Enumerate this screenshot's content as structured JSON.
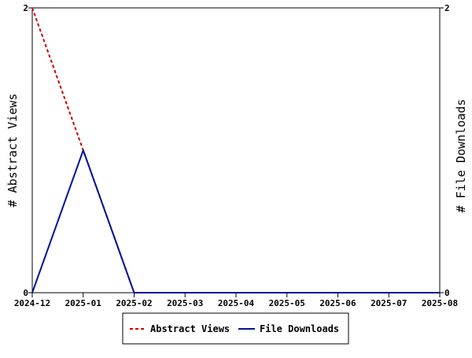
{
  "chart_data": {
    "type": "line",
    "x": [
      "2024-12",
      "2025-01",
      "2025-02",
      "2025-03",
      "2025-04",
      "2025-05",
      "2025-06",
      "2025-07",
      "2025-08"
    ],
    "series": [
      {
        "name": "Abstract Views",
        "axis": "left",
        "color": "#cc0000",
        "style": "dashed",
        "values": [
          2,
          1,
          0,
          0,
          0,
          0,
          0,
          0,
          0
        ]
      },
      {
        "name": "File Downloads",
        "axis": "right",
        "color": "#001199",
        "style": "solid",
        "values": [
          0,
          1,
          0,
          0,
          0,
          0,
          0,
          0,
          0
        ]
      }
    ],
    "ylabel_left": "# Abstract Views",
    "ylabel_right": "# File Downloads",
    "ylim_left": [
      0,
      2
    ],
    "ylim_right": [
      0,
      2
    ],
    "y_ticks_left": [
      "0",
      "2"
    ],
    "y_ticks_right": [
      "0",
      "2"
    ],
    "grid": false,
    "legend_position": "bottom-center"
  }
}
